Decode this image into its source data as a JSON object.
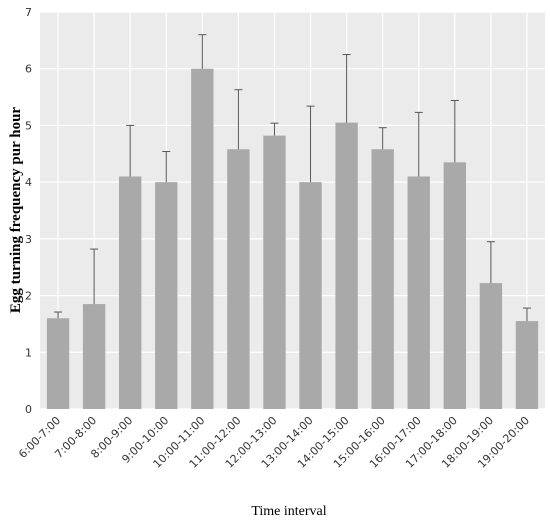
{
  "chart_data": {
    "type": "bar",
    "xlabel": "Time interval",
    "ylabel": "Egg turning frequency pur hour",
    "ylim": [
      0,
      7
    ],
    "yticks": [
      0,
      1,
      2,
      3,
      4,
      5,
      6,
      7
    ],
    "grid": true,
    "categories": [
      "6:00-7:00",
      "7:00-8:00",
      "8:00-9:00",
      "9:00-10:00",
      "10:00-11:00",
      "11:00-12:00",
      "12:00-13:00",
      "13:00-14:00",
      "14:00-15:00",
      "15:00-16:00",
      "16:00-17:00",
      "17:00-18:00",
      "18:00-19:00",
      "19:00-20:00"
    ],
    "values": [
      1.6,
      1.85,
      4.1,
      4.0,
      6.0,
      4.58,
      4.82,
      4.0,
      5.05,
      4.58,
      4.1,
      4.35,
      2.22,
      1.55
    ],
    "error_upper": [
      1.71,
      2.82,
      5.0,
      4.54,
      6.6,
      5.63,
      5.04,
      5.34,
      6.25,
      4.96,
      5.23,
      5.44,
      2.95,
      1.78
    ],
    "colors": {
      "plot_background": "#ebebeb",
      "grid": "#ffffff",
      "bar": "#a9a9a9",
      "error_bar": "#555555"
    }
  }
}
